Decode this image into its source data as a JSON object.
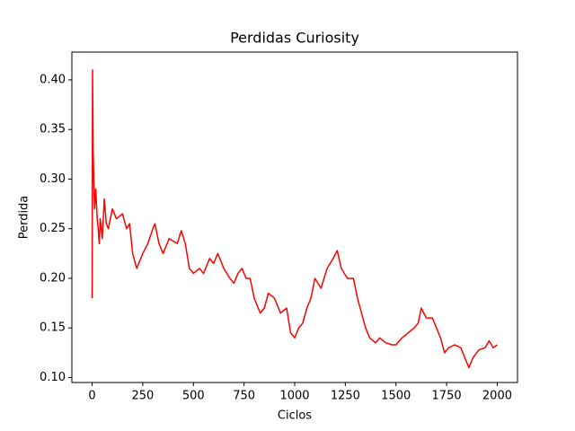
{
  "chart_data": {
    "type": "line",
    "title": "Perdidas Curiosity",
    "x_label": "Ciclos",
    "y_label": "Perdida",
    "x": [
      0,
      2,
      5,
      8,
      12,
      18,
      25,
      30,
      35,
      40,
      50,
      60,
      70,
      80,
      100,
      120,
      150,
      170,
      185,
      200,
      220,
      250,
      275,
      300,
      310,
      330,
      350,
      380,
      420,
      440,
      460,
      480,
      500,
      530,
      550,
      580,
      600,
      620,
      650,
      680,
      700,
      720,
      740,
      760,
      780,
      800,
      830,
      850,
      870,
      900,
      930,
      960,
      980,
      1000,
      1020,
      1040,
      1060,
      1080,
      1100,
      1130,
      1160,
      1190,
      1210,
      1230,
      1260,
      1290,
      1310,
      1330,
      1350,
      1370,
      1400,
      1420,
      1450,
      1480,
      1500,
      1530,
      1560,
      1590,
      1610,
      1625,
      1650,
      1680,
      1700,
      1720,
      1740,
      1760,
      1790,
      1820,
      1840,
      1860,
      1880,
      1910,
      1940,
      1960,
      1980,
      2000
    ],
    "series": [
      {
        "name": "Perdida",
        "color": "#ff0000",
        "values": [
          0.18,
          0.41,
          0.33,
          0.3,
          0.27,
          0.29,
          0.26,
          0.25,
          0.235,
          0.26,
          0.24,
          0.28,
          0.255,
          0.25,
          0.27,
          0.26,
          0.265,
          0.25,
          0.255,
          0.225,
          0.21,
          0.225,
          0.235,
          0.25,
          0.255,
          0.235,
          0.225,
          0.24,
          0.235,
          0.248,
          0.235,
          0.21,
          0.205,
          0.21,
          0.205,
          0.22,
          0.215,
          0.225,
          0.21,
          0.2,
          0.195,
          0.205,
          0.21,
          0.2,
          0.2,
          0.18,
          0.165,
          0.17,
          0.185,
          0.18,
          0.165,
          0.17,
          0.145,
          0.14,
          0.15,
          0.155,
          0.17,
          0.18,
          0.2,
          0.19,
          0.21,
          0.22,
          0.228,
          0.21,
          0.2,
          0.2,
          0.18,
          0.165,
          0.15,
          0.14,
          0.135,
          0.14,
          0.135,
          0.133,
          0.133,
          0.14,
          0.145,
          0.15,
          0.155,
          0.17,
          0.16,
          0.16,
          0.15,
          0.14,
          0.125,
          0.13,
          0.133,
          0.13,
          0.12,
          0.11,
          0.12,
          0.128,
          0.13,
          0.137,
          0.13,
          0.133
        ]
      }
    ],
    "xlim": [
      -100,
      2100
    ],
    "ylim": [
      0.095,
      0.428
    ],
    "xticks": [
      0,
      250,
      500,
      750,
      1000,
      1250,
      1500,
      1750,
      2000
    ],
    "yticks": [
      {
        "value": 0.1,
        "label": "0.10"
      },
      0.15,
      {
        "value": 0.2,
        "label": "0.20"
      },
      0.25,
      {
        "value": 0.3,
        "label": "0.30"
      },
      0.35,
      {
        "value": 0.4,
        "label": "0.40"
      }
    ],
    "grid": false
  }
}
